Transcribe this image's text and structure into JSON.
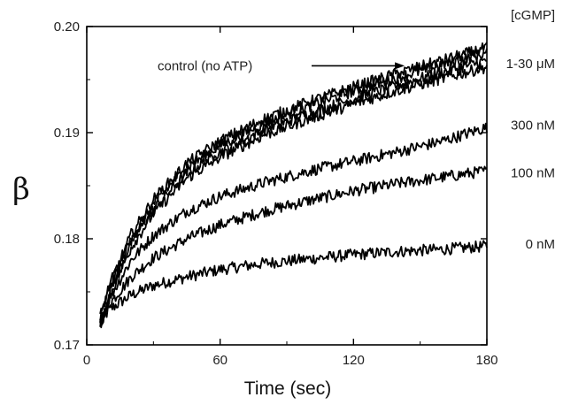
{
  "chart_data": {
    "type": "line",
    "xlabel": "Time (sec)",
    "ylabel": "β",
    "xlim": [
      0,
      180
    ],
    "ylim": [
      0.17,
      0.2
    ],
    "xticks": [
      {
        "value": 0,
        "label": "0"
      },
      {
        "value": 60,
        "label": "60"
      },
      {
        "value": 120,
        "label": "120"
      },
      {
        "value": 180,
        "label": "180"
      }
    ],
    "yticks": [
      {
        "value": 0.17,
        "label": "0.17"
      },
      {
        "value": 0.18,
        "label": "0.18"
      },
      {
        "value": 0.19,
        "label": "0.19"
      },
      {
        "value": 0.2,
        "label": "0.20"
      }
    ],
    "legend_header": "[cGMP]",
    "annotation": {
      "text": "control (no ATP)",
      "arrow_to_x": 143,
      "arrow_to_y": 0.1963
    },
    "series": [
      {
        "name": "0 nM",
        "label_y": 0.1795,
        "x": [
          6,
          10,
          20,
          30,
          45,
          60,
          80,
          100,
          120,
          140,
          160,
          180
        ],
        "y": [
          0.172,
          0.1733,
          0.1747,
          0.1756,
          0.1764,
          0.1771,
          0.1777,
          0.1781,
          0.1785,
          0.1788,
          0.179,
          0.1793
        ]
      },
      {
        "name": "100 nM",
        "label_y": 0.1862,
        "x": [
          6,
          10,
          20,
          30,
          45,
          60,
          80,
          100,
          120,
          140,
          160,
          180
        ],
        "y": [
          0.172,
          0.1738,
          0.1764,
          0.1782,
          0.18,
          0.1813,
          0.1826,
          0.1836,
          0.1845,
          0.1852,
          0.1858,
          0.1864
        ]
      },
      {
        "name": "300 nM",
        "label_y": 0.1907,
        "x": [
          6,
          10,
          20,
          30,
          45,
          60,
          80,
          100,
          120,
          140,
          160,
          180
        ],
        "y": [
          0.172,
          0.1743,
          0.178,
          0.1803,
          0.1826,
          0.184,
          0.1853,
          0.1864,
          0.1873,
          0.1882,
          0.1892,
          0.1905
        ]
      },
      {
        "name": "1-30 μM",
        "label_y": 0.1965,
        "x": [
          6,
          10,
          20,
          30,
          45,
          60,
          80,
          100,
          120,
          140,
          160,
          180
        ],
        "y": [
          0.172,
          0.1748,
          0.1796,
          0.1828,
          0.1862,
          0.1882,
          0.1903,
          0.1918,
          0.1932,
          0.1945,
          0.1957,
          0.1968
        ]
      },
      {
        "name": "",
        "label_y": null,
        "x": [
          6,
          10,
          20,
          30,
          45,
          60,
          80,
          100,
          120,
          140,
          160,
          180
        ],
        "y": [
          0.1723,
          0.1752,
          0.18,
          0.1833,
          0.1867,
          0.1888,
          0.1909,
          0.1925,
          0.1939,
          0.1952,
          0.1964,
          0.1975
        ]
      },
      {
        "name": "",
        "label_y": null,
        "x": [
          6,
          10,
          20,
          30,
          45,
          60,
          80,
          100,
          120,
          140,
          160,
          180
        ],
        "y": [
          0.1718,
          0.1745,
          0.1792,
          0.1824,
          0.1857,
          0.1877,
          0.1898,
          0.1913,
          0.1927,
          0.194,
          0.1951,
          0.1962
        ]
      },
      {
        "name": "",
        "label_y": null,
        "x": [
          6,
          10,
          20,
          30,
          45,
          60,
          80,
          100,
          120,
          140,
          160,
          180
        ],
        "y": [
          0.1726,
          0.1755,
          0.1804,
          0.1837,
          0.1871,
          0.1892,
          0.1913,
          0.1929,
          0.1943,
          0.1956,
          0.1968,
          0.198
        ]
      }
    ]
  }
}
